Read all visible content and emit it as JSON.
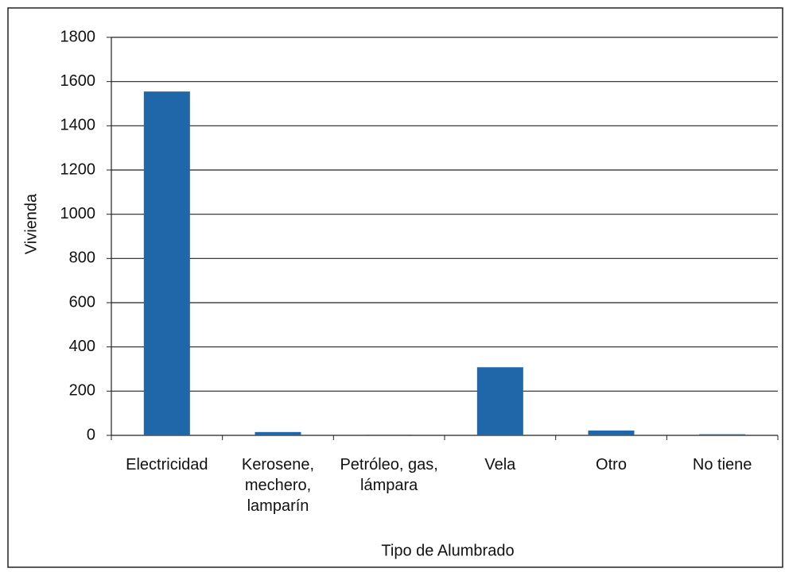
{
  "chart_data": {
    "type": "bar",
    "x_label": "Tipo de Alumbrado",
    "y_label": "Vivienda",
    "categories": [
      "Electricidad",
      "Kerosene, mechero, lamparín",
      "Petróleo, gas, lámpara",
      "Vela",
      "Otro",
      "No tiene"
    ],
    "values": [
      1555,
      15,
      3,
      308,
      22,
      5
    ],
    "color": "#1f67a8",
    "ylim": [
      0,
      1800
    ],
    "yticks": [
      0,
      200,
      400,
      600,
      800,
      1000,
      1200,
      1400,
      1600,
      1800
    ],
    "grid": true
  }
}
